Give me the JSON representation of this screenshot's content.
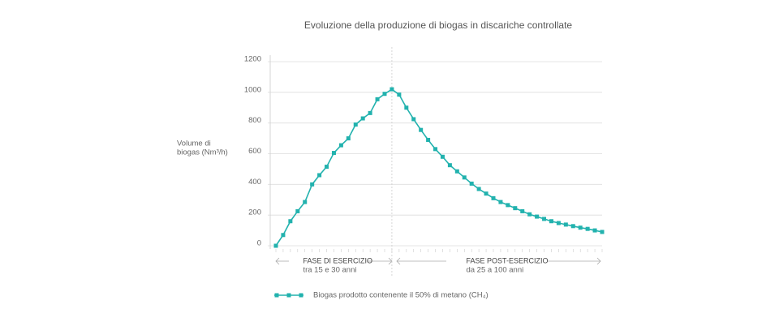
{
  "chart_data": {
    "type": "line",
    "title": "Evoluzione della produzione di biogas in discariche controllate",
    "y_label": [
      "Volume di",
      "biogas (Nm³/h)"
    ],
    "categories": [
      null,
      null,
      null,
      null,
      null,
      null,
      null,
      null,
      null,
      null,
      null,
      null,
      null,
      null,
      null,
      null,
      null,
      null,
      null,
      null,
      null,
      null,
      null,
      null,
      null,
      null,
      null,
      null,
      null,
      null,
      null,
      null,
      null,
      null,
      null,
      null,
      null,
      null,
      null,
      null,
      null,
      null,
      null,
      null,
      null,
      null
    ],
    "series": [
      {
        "name": "Biogas prodotto contenente il 50% di metano (CH₄)",
        "color": "#22b2ae",
        "values": [
          0,
          70,
          160,
          225,
          285,
          400,
          460,
          515,
          605,
          655,
          700,
          790,
          830,
          865,
          955,
          990,
          1020,
          985,
          900,
          825,
          755,
          690,
          630,
          580,
          525,
          485,
          445,
          405,
          370,
          340,
          310,
          285,
          265,
          245,
          225,
          205,
          190,
          175,
          160,
          148,
          138,
          128,
          118,
          110,
          100,
          90
        ]
      }
    ],
    "ylim": [
      0,
      1200
    ],
    "yticks": [
      0,
      200,
      400,
      600,
      800,
      1000,
      1200
    ],
    "grid": true,
    "annotations": [
      {
        "title": "FASE DI ESERCIZIO",
        "subtitle": "tra 15 e 30 anni"
      },
      {
        "title": "FASE POST-ESERCIZIO",
        "subtitle": "da 25 a 100 anni"
      }
    ]
  }
}
